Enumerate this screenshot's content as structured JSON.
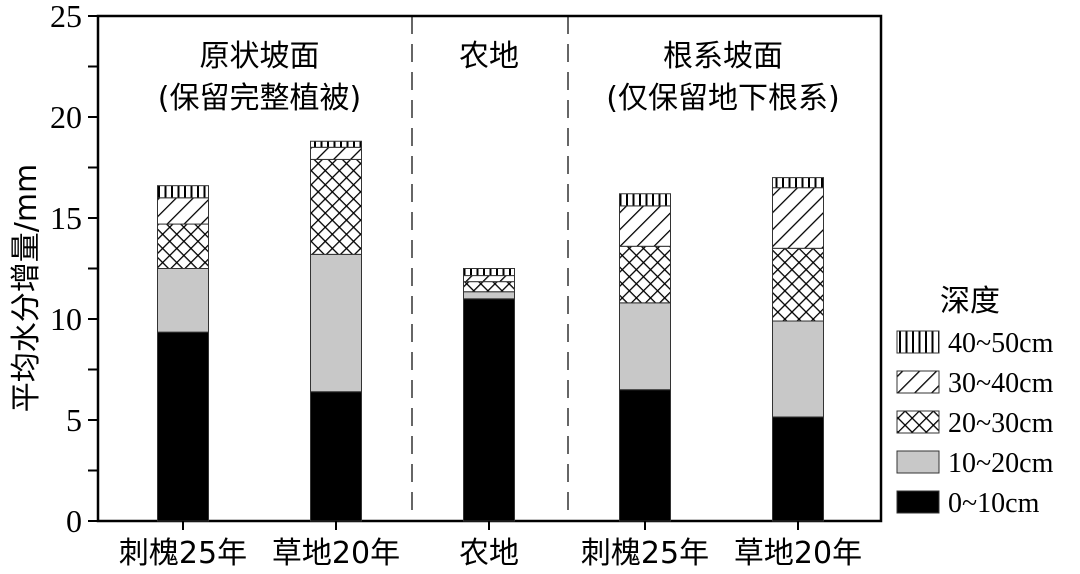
{
  "chart_data": {
    "type": "bar",
    "stacked": true,
    "title": "",
    "xlabel": "",
    "ylabel": "平均水分增量/mm",
    "ylim": [
      0,
      25
    ],
    "yticks": [
      0,
      5,
      10,
      15,
      20,
      25
    ],
    "grid": false,
    "categories": [
      "刺槐25年",
      "草地20年",
      "农地",
      "刺槐25年",
      "草地20年"
    ],
    "groups": [
      {
        "label_line1": "原状坡面",
        "label_line2": "(保留完整植被)",
        "categories": [
          0,
          1
        ]
      },
      {
        "label_line1": "农地",
        "label_line2": "",
        "categories": [
          2
        ]
      },
      {
        "label_line1": "根系坡面",
        "label_line2": "(仅保留地下根系)",
        "categories": [
          3,
          4
        ]
      }
    ],
    "legend": {
      "title": "深度",
      "position": "right"
    },
    "series": [
      {
        "name": "0~10cm",
        "pattern": "solid-black",
        "values": [
          9.35,
          6.4,
          11.0,
          6.5,
          5.15
        ]
      },
      {
        "name": "10~20cm",
        "pattern": "solid-gray",
        "values": [
          3.15,
          6.8,
          0.35,
          4.3,
          4.75
        ]
      },
      {
        "name": "20~30cm",
        "pattern": "crosshatch",
        "values": [
          2.2,
          4.7,
          0.5,
          2.8,
          3.6
        ]
      },
      {
        "name": "30~40cm",
        "pattern": "diagonal",
        "values": [
          1.3,
          0.6,
          0.3,
          2.0,
          3.0
        ]
      },
      {
        "name": "40~50cm",
        "pattern": "vertical",
        "values": [
          0.6,
          0.3,
          0.35,
          0.6,
          0.5
        ]
      }
    ]
  },
  "colors": {
    "black": "#000000",
    "gray": "#c8c8c8",
    "white": "#ffffff"
  }
}
